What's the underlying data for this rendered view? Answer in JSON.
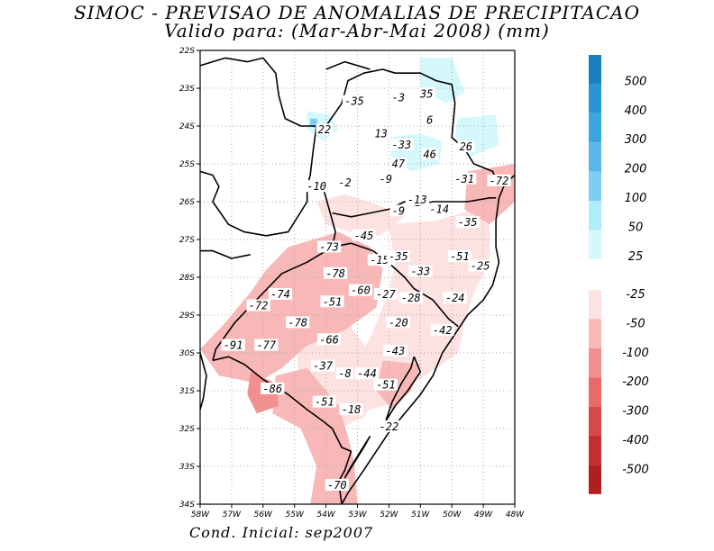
{
  "header": {
    "title_line1": "SIMOC - PREVISAO DE ANOMALIAS DE PRECIPITACAO",
    "title_line2": "Valido para: (Mar-Abr-Mai 2008) (mm)"
  },
  "footer": {
    "initial_condition": "Cond. Inicial: sep2007"
  },
  "map": {
    "lon_range": [
      -58,
      -48
    ],
    "lat_range": [
      -34,
      -22
    ],
    "lon_ticks": [
      "58W",
      "57W",
      "56W",
      "55W",
      "54W",
      "53W",
      "52W",
      "51W",
      "50W",
      "49W",
      "48W"
    ],
    "lat_ticks": [
      "22S",
      "23S",
      "24S",
      "25S",
      "26S",
      "27S",
      "28S",
      "29S",
      "30S",
      "31S",
      "32S",
      "33S",
      "34S"
    ],
    "grid": true
  },
  "colorbar": {
    "positive": [
      {
        "label": "500",
        "color": "#1a7fbf"
      },
      {
        "label": "400",
        "color": "#2a95d4"
      },
      {
        "label": "300",
        "color": "#3aa6e0"
      },
      {
        "label": "200",
        "color": "#58b8ea"
      },
      {
        "label": "100",
        "color": "#7fccf4"
      },
      {
        "label": "50",
        "color": "#b0ecfa"
      },
      {
        "label": "25",
        "color": "#d4f8fc"
      }
    ],
    "negative": [
      {
        "label": "-25",
        "color": "#fde2e2"
      },
      {
        "label": "-50",
        "color": "#f9b8b8"
      },
      {
        "label": "-100",
        "color": "#f29090"
      },
      {
        "label": "-200",
        "color": "#ea6a6a"
      },
      {
        "label": "-300",
        "color": "#d84848"
      },
      {
        "label": "-400",
        "color": "#c43030"
      },
      {
        "label": "-500",
        "color": "#b01e1e"
      }
    ]
  },
  "contour_labels": [
    {
      "text": "-35",
      "lon": -53.1,
      "lat": -23.35
    },
    {
      "text": "-3",
      "lon": -51.7,
      "lat": -23.25
    },
    {
      "text": "35",
      "lon": -50.8,
      "lat": -23.15
    },
    {
      "text": "6",
      "lon": -50.7,
      "lat": -23.85
    },
    {
      "text": "22",
      "lon": -54.05,
      "lat": -24.1
    },
    {
      "text": "13",
      "lon": -52.25,
      "lat": -24.2
    },
    {
      "text": "-33",
      "lon": -51.6,
      "lat": -24.5
    },
    {
      "text": "46",
      "lon": -50.7,
      "lat": -24.75
    },
    {
      "text": "26",
      "lon": -49.55,
      "lat": -24.55
    },
    {
      "text": "47",
      "lon": -51.7,
      "lat": -25.0
    },
    {
      "text": "-9",
      "lon": -52.1,
      "lat": -25.4
    },
    {
      "text": "-31",
      "lon": -49.6,
      "lat": -25.4
    },
    {
      "text": "-72",
      "lon": -48.5,
      "lat": -25.45
    },
    {
      "text": "-10",
      "lon": -54.3,
      "lat": -25.6
    },
    {
      "text": "-2",
      "lon": -53.4,
      "lat": -25.5
    },
    {
      "text": "-13",
      "lon": -51.1,
      "lat": -25.95
    },
    {
      "text": "-14",
      "lon": -50.4,
      "lat": -26.2
    },
    {
      "text": "-9",
      "lon": -51.7,
      "lat": -26.25
    },
    {
      "text": "-35",
      "lon": -49.5,
      "lat": -26.55
    },
    {
      "text": "-45",
      "lon": -52.8,
      "lat": -26.9
    },
    {
      "text": "-73",
      "lon": -53.9,
      "lat": -27.2
    },
    {
      "text": "-15",
      "lon": -52.3,
      "lat": -27.55
    },
    {
      "text": "-35",
      "lon": -51.7,
      "lat": -27.45
    },
    {
      "text": "-51",
      "lon": -49.75,
      "lat": -27.45
    },
    {
      "text": "-25",
      "lon": -49.1,
      "lat": -27.7
    },
    {
      "text": "-33",
      "lon": -51.0,
      "lat": -27.85
    },
    {
      "text": "-78",
      "lon": -53.7,
      "lat": -27.9
    },
    {
      "text": "-74",
      "lon": -55.45,
      "lat": -28.45
    },
    {
      "text": "-60",
      "lon": -52.9,
      "lat": -28.35
    },
    {
      "text": "-27",
      "lon": -52.1,
      "lat": -28.45
    },
    {
      "text": "-51",
      "lon": -53.8,
      "lat": -28.65
    },
    {
      "text": "-28",
      "lon": -51.3,
      "lat": -28.55
    },
    {
      "text": "-24",
      "lon": -49.9,
      "lat": -28.55
    },
    {
      "text": "-72",
      "lon": -56.15,
      "lat": -28.75
    },
    {
      "text": "-78",
      "lon": -54.9,
      "lat": -29.2
    },
    {
      "text": "-20",
      "lon": -51.7,
      "lat": -29.2
    },
    {
      "text": "-42",
      "lon": -50.3,
      "lat": -29.4
    },
    {
      "text": "-66",
      "lon": -53.9,
      "lat": -29.65
    },
    {
      "text": "-91",
      "lon": -56.95,
      "lat": -29.8
    },
    {
      "text": "-77",
      "lon": -55.9,
      "lat": -29.8
    },
    {
      "text": "-43",
      "lon": -51.8,
      "lat": -29.95
    },
    {
      "text": "-37",
      "lon": -54.1,
      "lat": -30.35
    },
    {
      "text": "-8",
      "lon": -53.4,
      "lat": -30.55
    },
    {
      "text": "-44",
      "lon": -52.7,
      "lat": -30.55
    },
    {
      "text": "-51",
      "lon": -52.1,
      "lat": -30.85
    },
    {
      "text": "-86",
      "lon": -55.7,
      "lat": -30.95
    },
    {
      "text": "-51",
      "lon": -54.05,
      "lat": -31.3
    },
    {
      "text": "-18",
      "lon": -53.2,
      "lat": -31.5
    },
    {
      "text": "-22",
      "lon": -52.0,
      "lat": -31.95
    },
    {
      "text": "-70",
      "lon": -53.65,
      "lat": -33.5
    }
  ]
}
